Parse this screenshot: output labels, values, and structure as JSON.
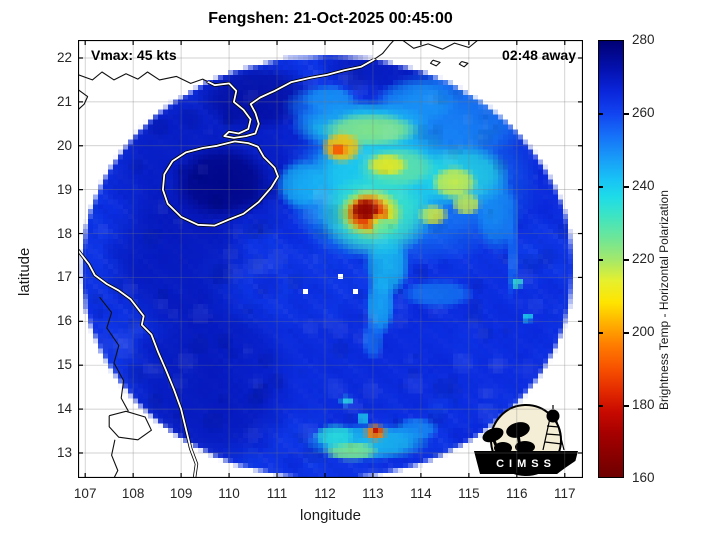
{
  "chart_data": {
    "type": "heatmap",
    "title": "Fengshen: 21-Oct-2025 00:45:00",
    "annotations": {
      "vmax": "Vmax: 45 kts",
      "eta": "02:48 away"
    },
    "xlabel": "longitude",
    "ylabel": "latitude",
    "xticks": [
      107,
      108,
      109,
      110,
      111,
      112,
      113,
      114,
      115,
      116,
      117
    ],
    "yticks": [
      13,
      14,
      15,
      16,
      17,
      18,
      19,
      20,
      21,
      22
    ],
    "xlim": [
      106.85,
      117.38
    ],
    "ylim": [
      12.43,
      22.41
    ],
    "grid": true,
    "colorbar": {
      "label": "Brightness Temp - Horizontal Polarization",
      "min": 160,
      "max": 280,
      "ticks": [
        160,
        180,
        200,
        220,
        240,
        260,
        280
      ],
      "stops": [
        [
          160,
          "#6E0000"
        ],
        [
          166,
          "#8A0000"
        ],
        [
          172,
          "#A60000"
        ],
        [
          178,
          "#C80A00"
        ],
        [
          184,
          "#E42C00"
        ],
        [
          190,
          "#F85200"
        ],
        [
          196,
          "#FF7A00"
        ],
        [
          202,
          "#FFAE00"
        ],
        [
          208,
          "#FFE400"
        ],
        [
          214,
          "#E6F02E"
        ],
        [
          220,
          "#A2E86C"
        ],
        [
          226,
          "#6CE69A"
        ],
        [
          232,
          "#3CE4C4"
        ],
        [
          237,
          "#1EDCE8"
        ],
        [
          242,
          "#18C2F6"
        ],
        [
          248,
          "#189AF8"
        ],
        [
          254,
          "#1670F8"
        ],
        [
          260,
          "#1244F0"
        ],
        [
          266,
          "#0A26DC"
        ],
        [
          272,
          "#0412B2"
        ],
        [
          280,
          "#000074"
        ]
      ]
    },
    "swath": {
      "center": [
        112.05,
        17.2
      ],
      "rx": 5.12,
      "ry": 4.85
    },
    "base_temp": 263.5,
    "features": [
      {
        "lon": 109.6,
        "lat": 19.6,
        "rx": 2.4,
        "ry": 2.0,
        "temp": 271,
        "a": 0.75
      },
      {
        "lon": 108.9,
        "lat": 17.4,
        "rx": 1.6,
        "ry": 1.8,
        "temp": 272,
        "a": 0.7
      },
      {
        "lon": 109.6,
        "lat": 14.6,
        "rx": 1.9,
        "ry": 2.2,
        "temp": 272,
        "a": 0.75
      },
      {
        "lon": 112.2,
        "lat": 14.9,
        "rx": 2.6,
        "ry": 1.5,
        "temp": 267,
        "a": 0.5
      },
      {
        "lon": 115.2,
        "lat": 15.6,
        "rx": 2.2,
        "ry": 2.0,
        "temp": 266,
        "a": 0.5
      },
      {
        "lon": 116.2,
        "lat": 19.6,
        "rx": 1.6,
        "ry": 1.8,
        "temp": 267,
        "a": 0.5
      },
      {
        "lon": 109.85,
        "lat": 19.15,
        "rx": 1.1,
        "ry": 0.9,
        "temp": 278,
        "a": 0.9
      },
      {
        "lon": 110.6,
        "lat": 21.1,
        "rx": 1.3,
        "ry": 0.8,
        "temp": 275,
        "a": 0.8
      },
      {
        "lon": 113.4,
        "lat": 21.9,
        "rx": 1.6,
        "ry": 0.8,
        "temp": 272,
        "a": 0.7
      },
      {
        "lon": 113.8,
        "lat": 19.2,
        "rx": 2.7,
        "ry": 2.0,
        "temp": 250,
        "a": 0.7
      },
      {
        "lon": 114.8,
        "lat": 20.8,
        "rx": 1.8,
        "ry": 1.1,
        "temp": 249,
        "a": 0.65
      },
      {
        "lon": 112.9,
        "lat": 18.9,
        "rx": 1.7,
        "ry": 1.6,
        "temp": 244,
        "a": 0.7
      },
      {
        "lon": 113.3,
        "lat": 19.3,
        "rx": 1.7,
        "ry": 1.2,
        "temp": 238,
        "a": 0.8
      },
      {
        "lon": 112.75,
        "lat": 20.45,
        "rx": 1.5,
        "ry": 0.6,
        "temp": 238,
        "a": 0.85
      },
      {
        "lon": 111.5,
        "lat": 19.1,
        "rx": 0.55,
        "ry": 0.6,
        "temp": 243,
        "a": 0.8
      },
      {
        "lon": 112.1,
        "lat": 21.05,
        "rx": 0.6,
        "ry": 0.35,
        "temp": 244,
        "a": 0.7
      },
      {
        "lon": 114.9,
        "lat": 19.3,
        "rx": 1.0,
        "ry": 0.75,
        "temp": 236,
        "a": 0.8
      },
      {
        "lon": 115.6,
        "lat": 18.4,
        "rx": 0.5,
        "ry": 0.9,
        "temp": 246,
        "a": 0.6
      },
      {
        "lon": 113.9,
        "lat": 21.0,
        "rx": 0.9,
        "ry": 0.55,
        "temp": 247,
        "a": 0.6
      },
      {
        "lon": 111.9,
        "lat": 20.9,
        "rx": 0.8,
        "ry": 0.5,
        "temp": 250,
        "a": 0.6
      },
      {
        "lon": 112.95,
        "lat": 20.35,
        "rx": 1.05,
        "ry": 0.4,
        "temp": 222,
        "a": 0.85
      },
      {
        "lon": 113.5,
        "lat": 19.5,
        "rx": 0.85,
        "ry": 0.5,
        "temp": 226,
        "a": 0.8
      },
      {
        "lon": 113.3,
        "lat": 19.55,
        "rx": 0.45,
        "ry": 0.28,
        "temp": 210,
        "a": 0.85
      },
      {
        "lon": 114.7,
        "lat": 19.15,
        "rx": 0.5,
        "ry": 0.4,
        "temp": 215,
        "a": 0.85
      },
      {
        "lon": 114.95,
        "lat": 18.65,
        "rx": 0.33,
        "ry": 0.28,
        "temp": 216,
        "a": 0.85
      },
      {
        "lon": 114.25,
        "lat": 18.4,
        "rx": 0.34,
        "ry": 0.26,
        "temp": 214,
        "a": 0.85
      },
      {
        "lon": 112.35,
        "lat": 19.95,
        "rx": 0.45,
        "ry": 0.38,
        "temp": 204,
        "a": 0.95
      },
      {
        "lon": 112.28,
        "lat": 19.9,
        "rx": 0.2,
        "ry": 0.16,
        "temp": 190,
        "a": 0.95
      },
      {
        "lon": 113.05,
        "lat": 18.4,
        "rx": 1.2,
        "ry": 1.0,
        "temp": 232,
        "a": 0.85
      },
      {
        "lon": 112.95,
        "lat": 18.45,
        "rx": 0.7,
        "ry": 0.6,
        "temp": 208,
        "a": 0.9
      },
      {
        "lon": 112.9,
        "lat": 18.45,
        "rx": 0.48,
        "ry": 0.45,
        "temp": 184,
        "a": 0.95
      },
      {
        "lon": 112.85,
        "lat": 18.52,
        "rx": 0.3,
        "ry": 0.27,
        "temp": 166,
        "a": 0.95
      },
      {
        "lon": 113.12,
        "lat": 18.22,
        "rx": 0.22,
        "ry": 0.2,
        "temp": 212,
        "a": 0.9
      },
      {
        "lon": 113.25,
        "lat": 18.1,
        "rx": 0.3,
        "ry": 0.25,
        "temp": 230,
        "a": 0.8
      },
      {
        "lon": 113.3,
        "lat": 17.25,
        "rx": 0.5,
        "ry": 0.75,
        "temp": 240,
        "a": 0.8
      },
      {
        "lon": 113.15,
        "lat": 16.35,
        "rx": 0.33,
        "ry": 0.75,
        "temp": 243,
        "a": 0.8
      },
      {
        "lon": 113.0,
        "lat": 15.55,
        "rx": 0.25,
        "ry": 0.5,
        "temp": 252,
        "a": 0.7
      },
      {
        "lon": 114.35,
        "lat": 16.6,
        "rx": 0.8,
        "ry": 0.35,
        "temp": 248,
        "a": 0.6
      },
      {
        "lon": 112.45,
        "lat": 14.15,
        "rx": 0.16,
        "ry": 0.14,
        "temp": 236,
        "a": 0.85
      },
      {
        "lon": 112.8,
        "lat": 13.75,
        "rx": 0.14,
        "ry": 0.13,
        "temp": 238,
        "a": 0.85
      },
      {
        "lon": 112.9,
        "lat": 13.2,
        "rx": 1.35,
        "ry": 0.45,
        "temp": 240,
        "a": 0.85
      },
      {
        "lon": 112.55,
        "lat": 13.0,
        "rx": 0.6,
        "ry": 0.25,
        "temp": 224,
        "a": 0.9
      },
      {
        "lon": 112.2,
        "lat": 13.35,
        "rx": 0.45,
        "ry": 0.3,
        "temp": 235,
        "a": 0.85
      },
      {
        "lon": 113.9,
        "lat": 13.5,
        "rx": 0.5,
        "ry": 0.3,
        "temp": 246,
        "a": 0.7
      },
      {
        "lon": 113.05,
        "lat": 13.42,
        "rx": 0.26,
        "ry": 0.22,
        "temp": 196,
        "a": 0.95
      },
      {
        "lon": 113.07,
        "lat": 13.44,
        "rx": 0.12,
        "ry": 0.1,
        "temp": 176,
        "a": 0.95
      },
      {
        "lon": 115.9,
        "lat": 17.5,
        "rx": 0.14,
        "ry": 1.1,
        "temp": 252,
        "a": 0.6
      },
      {
        "lon": 116.0,
        "lat": 16.85,
        "rx": 0.15,
        "ry": 0.14,
        "temp": 234,
        "a": 0.9
      },
      {
        "lon": 116.22,
        "lat": 16.05,
        "rx": 0.13,
        "ry": 0.12,
        "temp": 237,
        "a": 0.9
      }
    ],
    "white_specks": [
      [
        111.58,
        16.72
      ],
      [
        112.27,
        17.0
      ],
      [
        112.6,
        16.74
      ]
    ],
    "coastlines": {
      "china": [
        [
          106.85,
          21.62
        ],
        [
          107.15,
          21.5
        ],
        [
          107.35,
          21.68
        ],
        [
          107.6,
          21.5
        ],
        [
          107.85,
          21.64
        ],
        [
          108.1,
          21.52
        ],
        [
          108.3,
          21.68
        ],
        [
          108.55,
          21.5
        ],
        [
          108.9,
          21.58
        ],
        [
          109.2,
          21.42
        ],
        [
          109.45,
          21.52
        ],
        [
          109.7,
          21.38
        ],
        [
          110.0,
          21.42
        ],
        [
          110.15,
          21.25
        ],
        [
          110.1,
          21.0
        ],
        [
          110.3,
          20.82
        ],
        [
          110.45,
          20.6
        ],
        [
          110.4,
          20.38
        ],
        [
          110.2,
          20.28
        ],
        [
          110.0,
          20.32
        ],
        [
          109.9,
          20.22
        ],
        [
          110.1,
          20.18
        ],
        [
          110.35,
          20.22
        ],
        [
          110.55,
          20.28
        ],
        [
          110.62,
          20.5
        ],
        [
          110.55,
          20.75
        ],
        [
          110.45,
          20.95
        ],
        [
          110.65,
          21.1
        ],
        [
          110.95,
          21.25
        ],
        [
          111.3,
          21.45
        ],
        [
          111.7,
          21.55
        ],
        [
          112.05,
          21.62
        ],
        [
          112.4,
          21.72
        ],
        [
          112.75,
          21.8
        ],
        [
          113.0,
          21.95
        ],
        [
          113.2,
          22.1
        ],
        [
          113.35,
          22.3
        ],
        [
          113.45,
          22.42
        ]
      ],
      "china_east": [
        [
          113.6,
          22.42
        ],
        [
          113.85,
          22.22
        ],
        [
          114.15,
          22.32
        ],
        [
          114.45,
          22.2
        ],
        [
          114.7,
          22.34
        ],
        [
          115.0,
          22.24
        ],
        [
          115.2,
          22.42
        ]
      ],
      "island1": [
        [
          114.25,
          21.95
        ],
        [
          114.4,
          21.9
        ],
        [
          114.32,
          21.82
        ],
        [
          114.2,
          21.88
        ],
        [
          114.25,
          21.95
        ]
      ],
      "island2": [
        [
          114.85,
          21.92
        ],
        [
          114.98,
          21.88
        ],
        [
          114.9,
          21.8
        ],
        [
          114.8,
          21.86
        ],
        [
          114.85,
          21.92
        ]
      ],
      "gulf_nw": [
        [
          106.85,
          21.28
        ],
        [
          107.05,
          21.12
        ],
        [
          106.98,
          20.95
        ],
        [
          106.85,
          20.82
        ]
      ],
      "hainan": [
        [
          110.12,
          20.1
        ],
        [
          110.4,
          20.06
        ],
        [
          110.6,
          19.98
        ],
        [
          110.72,
          19.75
        ],
        [
          110.95,
          19.5
        ],
        [
          111.02,
          19.3
        ],
        [
          110.88,
          19.05
        ],
        [
          110.62,
          18.72
        ],
        [
          110.3,
          18.45
        ],
        [
          110.0,
          18.32
        ],
        [
          109.7,
          18.18
        ],
        [
          109.35,
          18.2
        ],
        [
          109.0,
          18.38
        ],
        [
          108.72,
          18.68
        ],
        [
          108.62,
          19.0
        ],
        [
          108.65,
          19.35
        ],
        [
          108.82,
          19.65
        ],
        [
          109.1,
          19.85
        ],
        [
          109.45,
          19.95
        ],
        [
          109.75,
          20.0
        ],
        [
          110.12,
          20.1
        ]
      ],
      "vietnam": [
        [
          106.85,
          17.62
        ],
        [
          107.08,
          17.3
        ],
        [
          107.2,
          17.05
        ],
        [
          107.45,
          16.85
        ],
        [
          107.7,
          16.7
        ],
        [
          107.95,
          16.5
        ],
        [
          108.22,
          16.12
        ],
        [
          108.18,
          15.92
        ],
        [
          108.38,
          15.7
        ],
        [
          108.52,
          15.3
        ],
        [
          108.68,
          14.9
        ],
        [
          108.85,
          14.45
        ],
        [
          109.0,
          14.0
        ],
        [
          109.1,
          13.55
        ],
        [
          109.2,
          13.1
        ],
        [
          109.32,
          12.75
        ],
        [
          109.28,
          12.43
        ]
      ],
      "inland1": [
        [
          107.3,
          16.55
        ],
        [
          107.55,
          16.2
        ],
        [
          107.45,
          15.85
        ],
        [
          107.7,
          15.45
        ],
        [
          107.6,
          15.05
        ],
        [
          107.8,
          14.65
        ],
        [
          107.75,
          14.25
        ],
        [
          107.9,
          13.95
        ]
      ],
      "inland2": [
        [
          107.5,
          13.85
        ],
        [
          107.85,
          13.95
        ],
        [
          108.25,
          13.82
        ],
        [
          108.38,
          13.52
        ],
        [
          108.1,
          13.3
        ],
        [
          107.7,
          13.36
        ],
        [
          107.5,
          13.6
        ],
        [
          107.5,
          13.85
        ]
      ],
      "inland3": [
        [
          107.62,
          13.3
        ],
        [
          107.55,
          12.95
        ],
        [
          107.68,
          12.6
        ],
        [
          107.6,
          12.43
        ]
      ]
    }
  },
  "logo": {
    "text": "CIMSS"
  }
}
